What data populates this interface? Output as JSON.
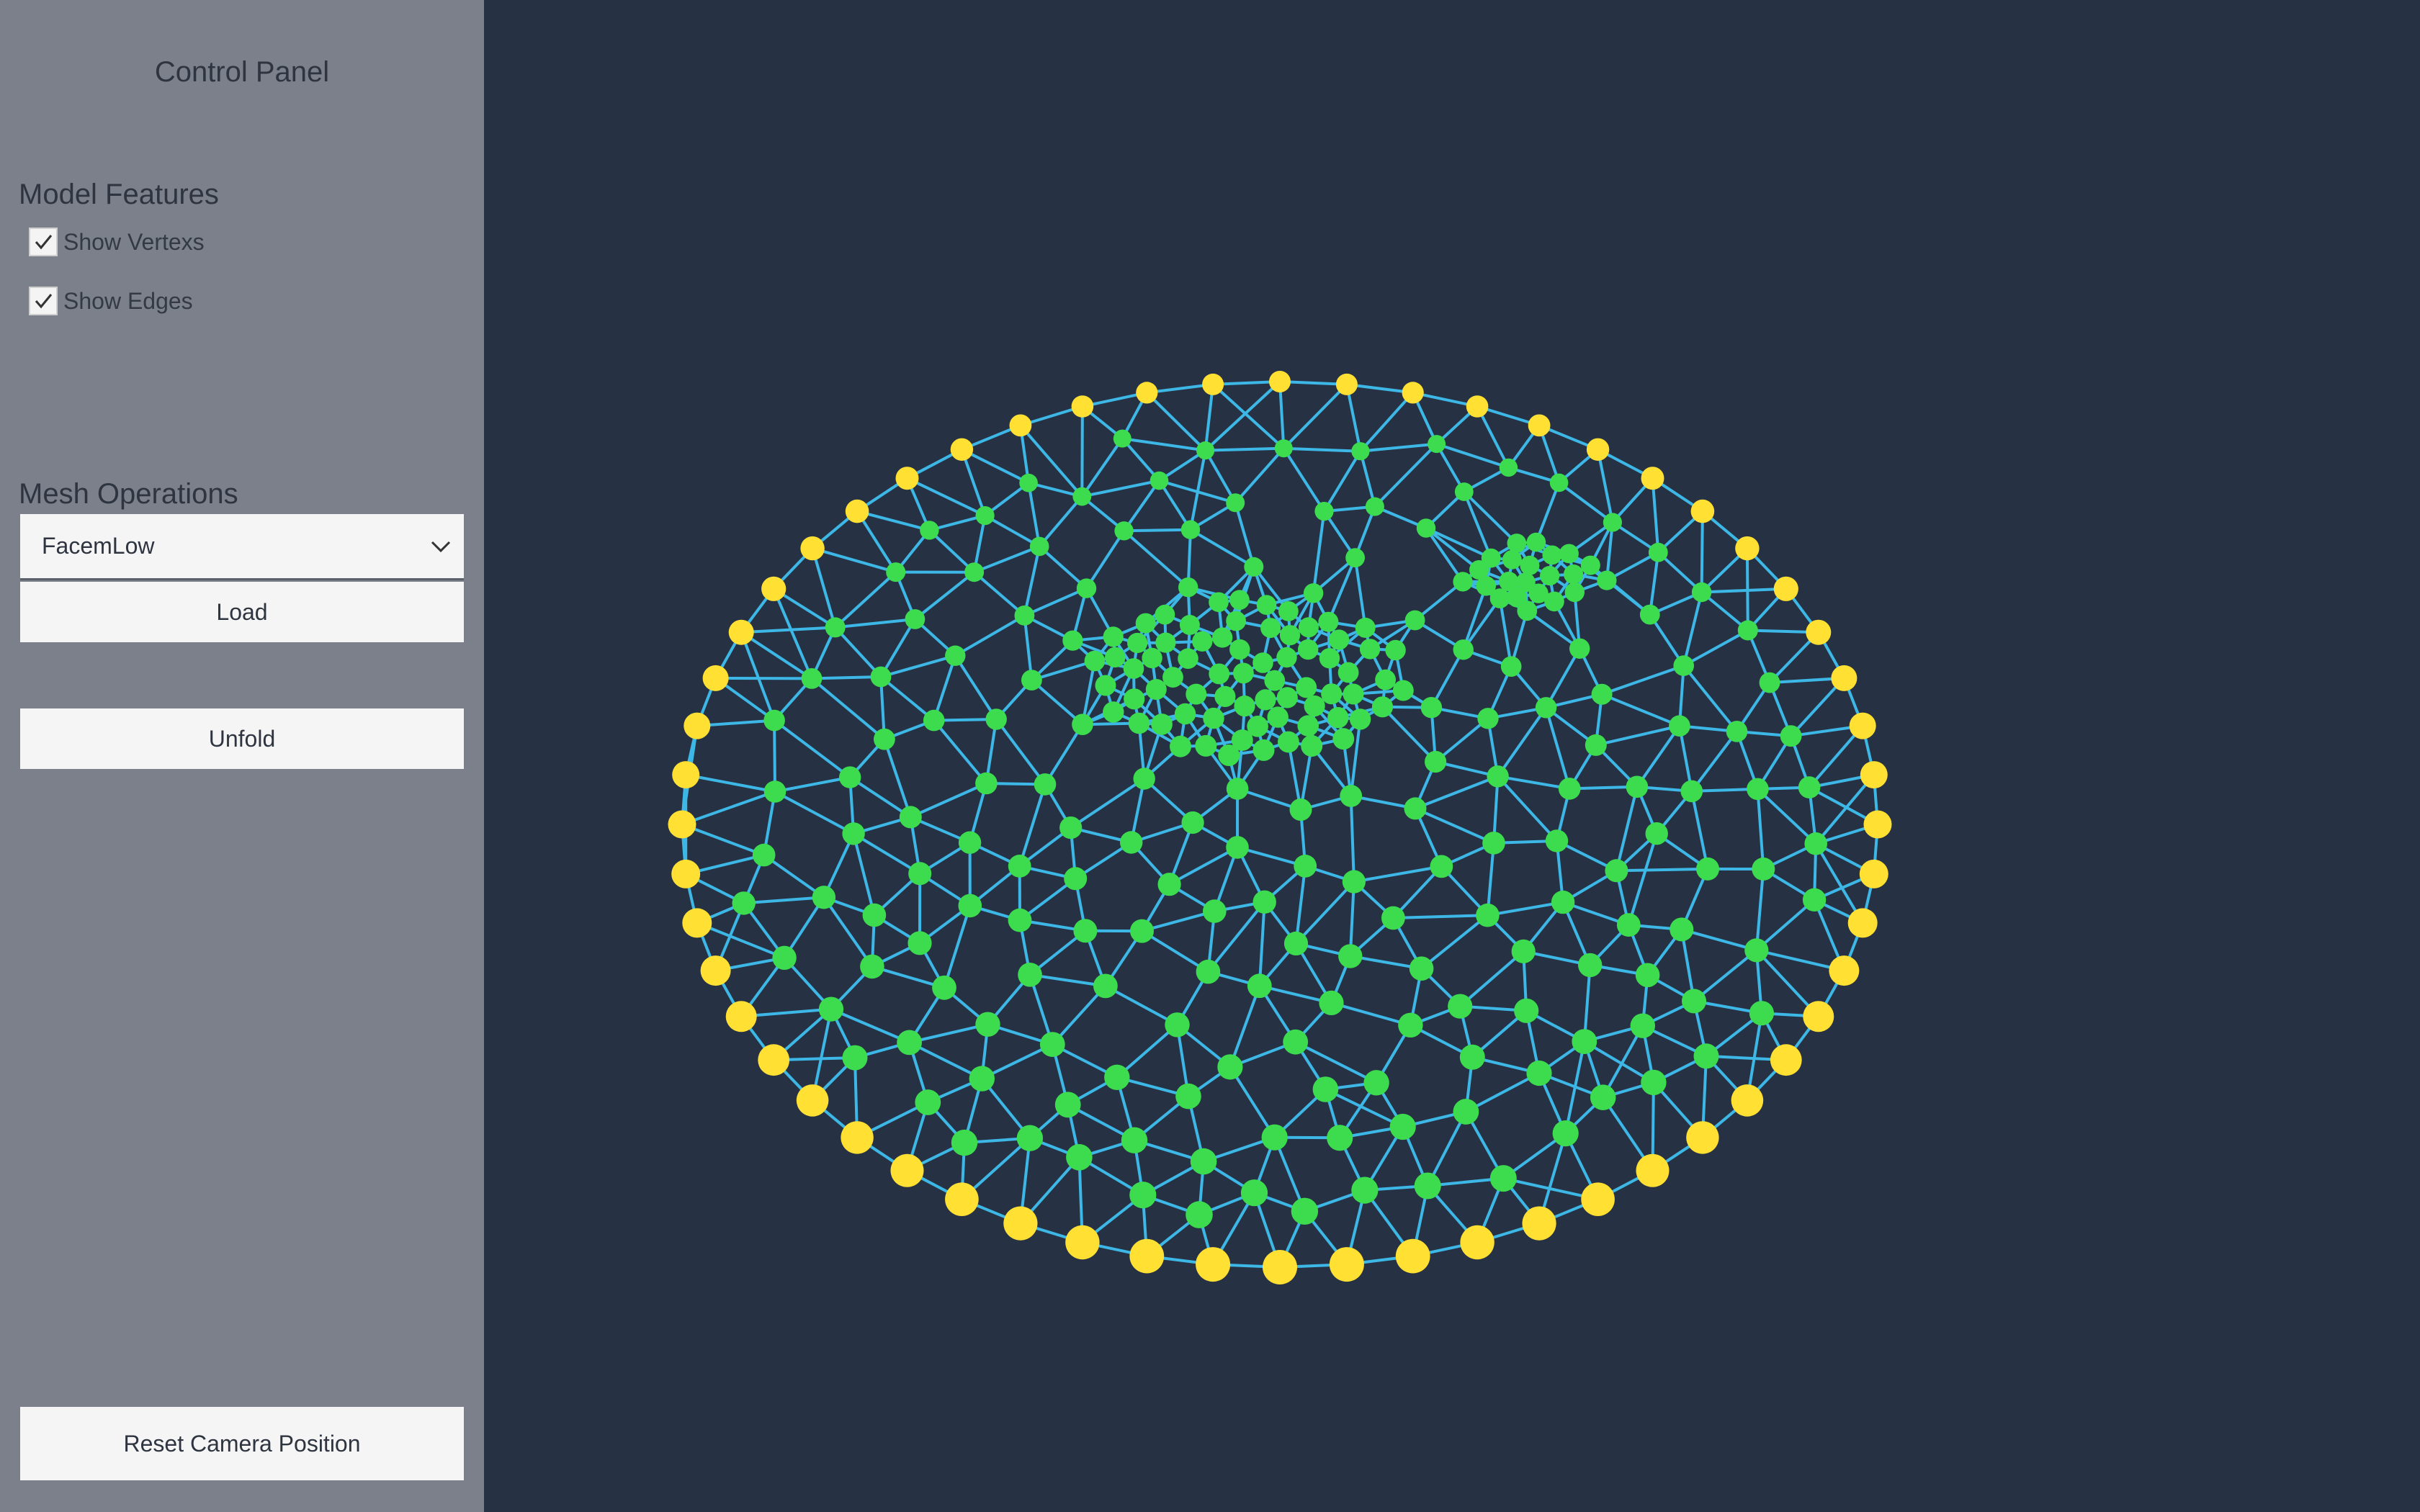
{
  "control_panel": {
    "title": "Control Panel",
    "model_features": {
      "heading": "Model Features",
      "show_vertexes": {
        "label": "Show Vertexs",
        "checked": true
      },
      "show_edges": {
        "label": "Show Edges",
        "checked": true
      }
    },
    "mesh_operations": {
      "heading": "Mesh Operations",
      "mesh_select": {
        "selected": "FacemLow"
      },
      "load_label": "Load",
      "unfold_label": "Unfold"
    },
    "reset_camera_label": "Reset Camera Position"
  },
  "viewport": {
    "background_color": "#263244",
    "edge_color": "#3db8e6",
    "inner_vertex_color": "#3ddc4f",
    "boundary_vertex_color": "#ffe033"
  },
  "icons": {
    "checkbox": "checkmark-icon",
    "dropdown": "chevron-down-icon"
  }
}
